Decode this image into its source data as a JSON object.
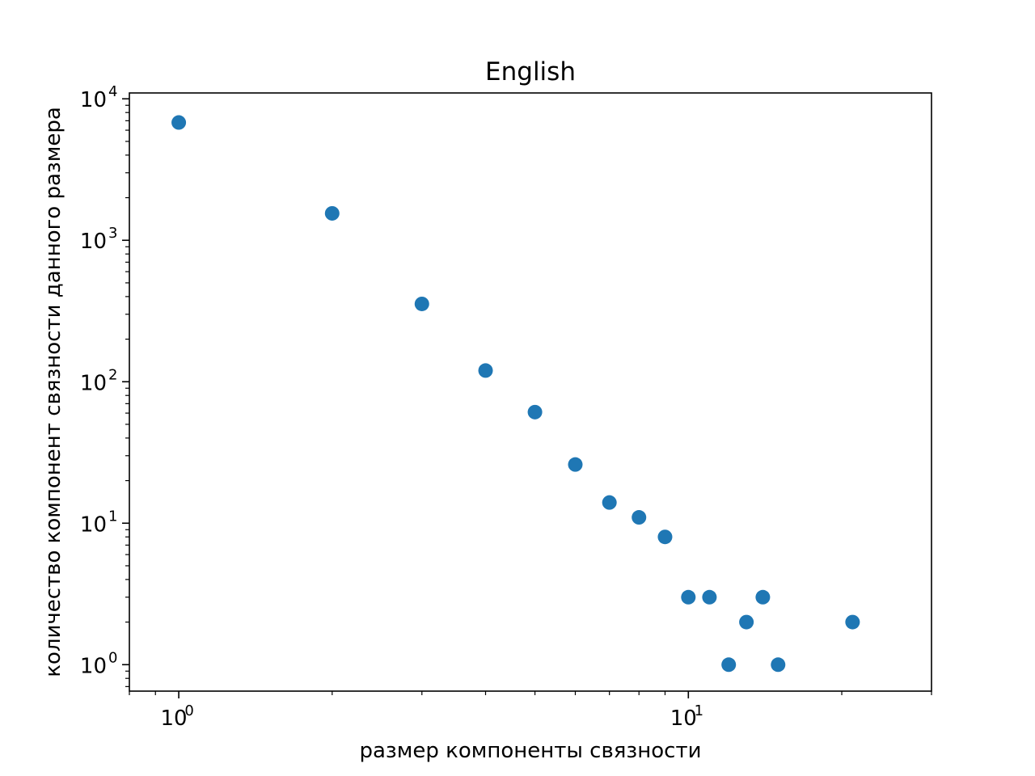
{
  "chart_data": {
    "type": "scatter",
    "title": "English",
    "xlabel": "размер компоненты связности",
    "ylabel": "количество компонент связности данного размера",
    "x_scale": "log",
    "y_scale": "log",
    "xlim": [
      0.8,
      30
    ],
    "ylim": [
      0.65,
      11000
    ],
    "grid": false,
    "x_ticks": [
      {
        "base": "10",
        "exp": "0",
        "value": 1
      },
      {
        "base": "10",
        "exp": "1",
        "value": 10
      }
    ],
    "y_ticks": [
      {
        "base": "10",
        "exp": "0",
        "value": 1
      },
      {
        "base": "10",
        "exp": "1",
        "value": 10
      },
      {
        "base": "10",
        "exp": "2",
        "value": 100
      },
      {
        "base": "10",
        "exp": "3",
        "value": 1000
      },
      {
        "base": "10",
        "exp": "4",
        "value": 10000
      }
    ],
    "points": [
      {
        "x": 1,
        "y": 6800
      },
      {
        "x": 2,
        "y": 1550
      },
      {
        "x": 3,
        "y": 355
      },
      {
        "x": 4,
        "y": 120
      },
      {
        "x": 5,
        "y": 61
      },
      {
        "x": 6,
        "y": 26
      },
      {
        "x": 7,
        "y": 14
      },
      {
        "x": 8,
        "y": 11
      },
      {
        "x": 9,
        "y": 8
      },
      {
        "x": 10,
        "y": 3
      },
      {
        "x": 11,
        "y": 3
      },
      {
        "x": 12,
        "y": 1
      },
      {
        "x": 13,
        "y": 2
      },
      {
        "x": 14,
        "y": 3
      },
      {
        "x": 15,
        "y": 1
      },
      {
        "x": 21,
        "y": 2
      }
    ],
    "marker_color": "#1f77b4"
  }
}
